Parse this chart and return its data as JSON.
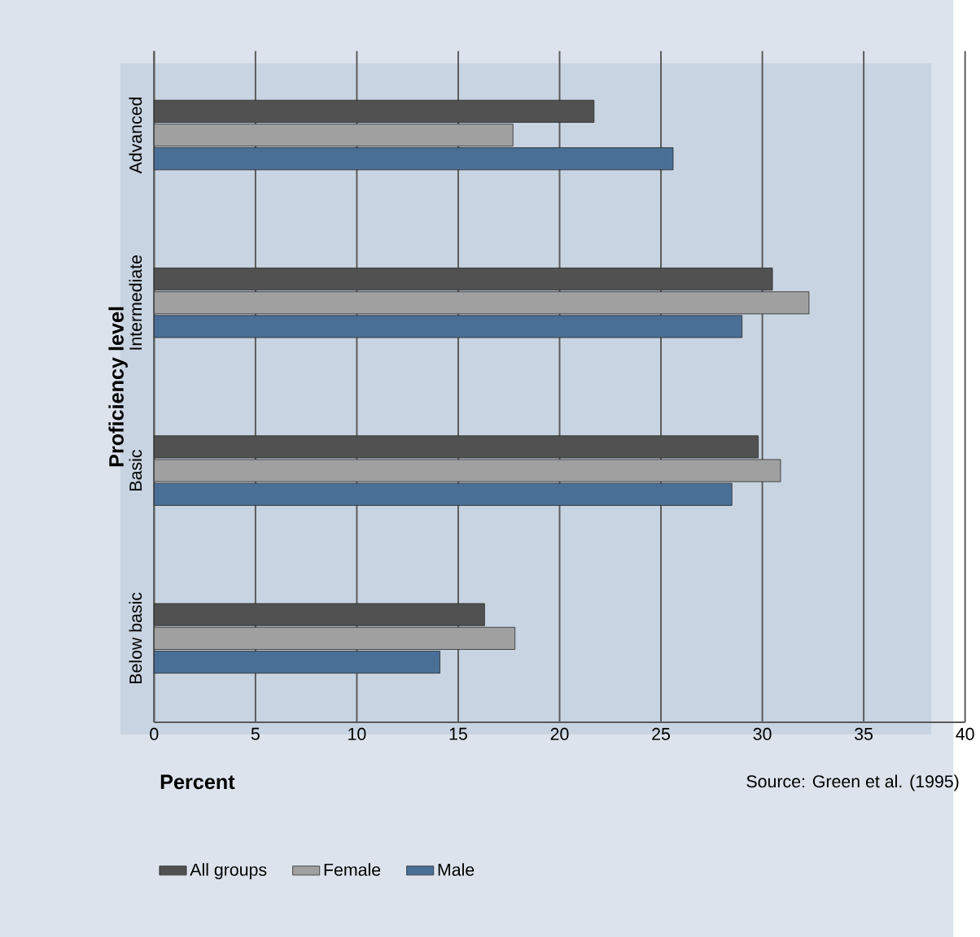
{
  "chart_data": {
    "type": "bar",
    "orientation": "horizontal",
    "xlabel": "Percent",
    "ylabel": "Proficiency level",
    "categories": [
      "Advanced",
      "Intermediate",
      "Basic",
      "Below basic"
    ],
    "series": [
      {
        "name": "All groups",
        "color": "#515151",
        "values": [
          21.7,
          30.5,
          29.8,
          16.3
        ]
      },
      {
        "name": "Female",
        "color": "#a0a0a0",
        "values": [
          17.7,
          32.3,
          30.9,
          17.8
        ]
      },
      {
        "name": "Male",
        "color": "#4a6f96",
        "values": [
          25.6,
          29.0,
          28.5,
          14.1
        ]
      }
    ],
    "xlim": [
      0,
      40
    ],
    "xticks": [
      0,
      5,
      10,
      15,
      20,
      25,
      30,
      35,
      40
    ],
    "grid": "x",
    "legend": "bottom",
    "annotations": [
      "Source:  Green et al. (1995)"
    ]
  }
}
